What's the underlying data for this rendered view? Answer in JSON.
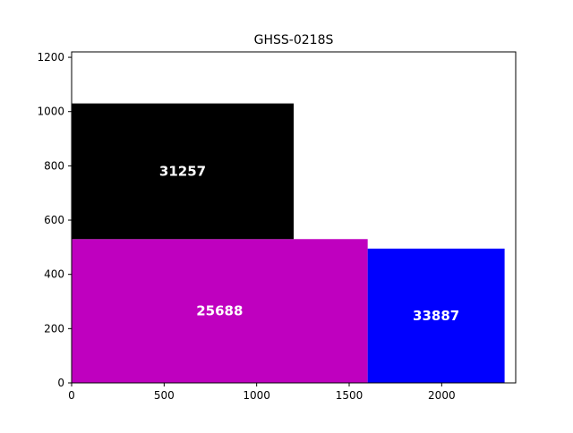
{
  "chart_data": {
    "type": "bar",
    "title": "GHSS-0218S",
    "xlabel": "",
    "ylabel": "",
    "xlim": [
      0,
      2400
    ],
    "ylim": [
      0,
      1220
    ],
    "x_ticks": [
      0,
      500,
      1000,
      1500,
      2000
    ],
    "y_ticks": [
      0,
      200,
      400,
      600,
      800,
      1000,
      1200
    ],
    "grid": false,
    "rects": [
      {
        "label": "25688",
        "x0": 0,
        "x1": 1600,
        "y0": 0,
        "y1": 530,
        "color": "#bf00bf"
      },
      {
        "label": "31257",
        "x0": 0,
        "x1": 1200,
        "y0": 530,
        "y1": 1030,
        "color": "#000000"
      },
      {
        "label": "33887",
        "x0": 1600,
        "x1": 2340,
        "y0": 0,
        "y1": 495,
        "color": "#0000ff"
      }
    ],
    "label_color": "#ffffff"
  }
}
